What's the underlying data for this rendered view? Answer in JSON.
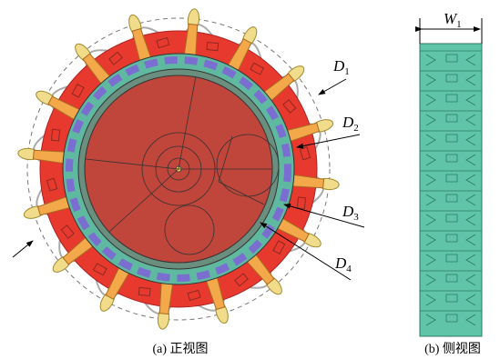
{
  "front_view": {
    "caption": "(a) 正视图",
    "labels": [
      {
        "symbol": "D",
        "subscript": "1"
      },
      {
        "symbol": "D",
        "subscript": "2"
      },
      {
        "symbol": "D",
        "subscript": "3"
      },
      {
        "symbol": "D",
        "subscript": "4"
      }
    ]
  },
  "side_view": {
    "caption": "(b) 侧视图",
    "label": {
      "symbol": "W",
      "subscript": "1"
    }
  }
}
